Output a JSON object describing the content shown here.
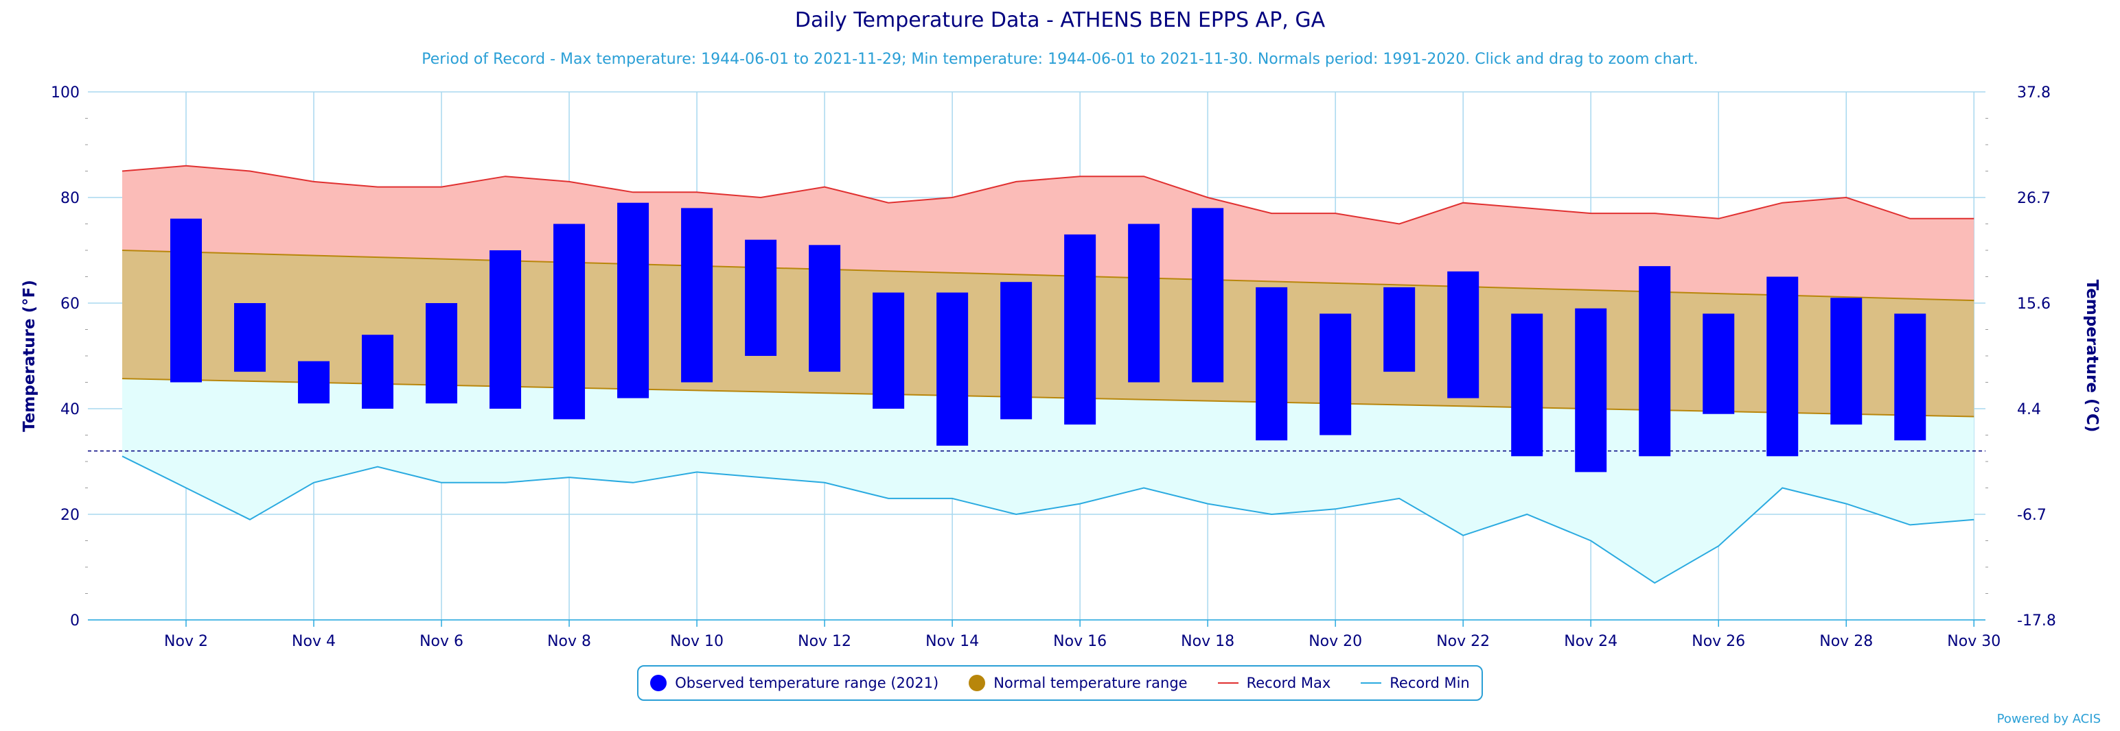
{
  "chart_data": {
    "type": "bar",
    "title": "Daily Temperature Data - ATHENS BEN EPPS AP, GA",
    "subtitle": "Period of Record - Max temperature: 1944-06-01 to 2021-11-29; Min temperature: 1944-06-01 to 2021-11-30. Normals period: 1991-2020. Click and drag to zoom chart.",
    "ylabel": "Temperature (°F)",
    "y2label": "Temperature (°C)",
    "ylim": [
      0,
      100
    ],
    "yticks": [
      0,
      20,
      40,
      60,
      80,
      100
    ],
    "y2ticks": [
      "-17.8",
      "-6.7",
      "4.4",
      "15.6",
      "26.7",
      "37.8"
    ],
    "x_days": [
      1,
      2,
      3,
      4,
      5,
      6,
      7,
      8,
      9,
      10,
      11,
      12,
      13,
      14,
      15,
      16,
      17,
      18,
      19,
      20,
      21,
      22,
      23,
      24,
      25,
      26,
      27,
      28,
      29,
      30
    ],
    "x_tick_labels": [
      "Nov 2",
      "Nov 4",
      "Nov 6",
      "Nov 8",
      "Nov 10",
      "Nov 12",
      "Nov 14",
      "Nov 16",
      "Nov 18",
      "Nov 20",
      "Nov 22",
      "Nov 24",
      "Nov 26",
      "Nov 28",
      "Nov 30"
    ],
    "x_tick_days": [
      2,
      4,
      6,
      8,
      10,
      12,
      14,
      16,
      18,
      20,
      22,
      24,
      26,
      28,
      30
    ],
    "freezing_line_f": 32,
    "grid": true,
    "legend_position": "bottom",
    "series": [
      {
        "name": "Observed temperature range (2021)",
        "color": "#0000ff",
        "days": [
          2,
          3,
          4,
          5,
          6,
          7,
          8,
          9,
          10,
          11,
          12,
          13,
          14,
          15,
          16,
          17,
          18,
          19,
          20,
          21,
          22,
          23,
          24,
          25,
          26,
          27,
          28,
          29
        ],
        "low": [
          45,
          47,
          41,
          40,
          41,
          40,
          38,
          42,
          45,
          50,
          47,
          40,
          33,
          38,
          37,
          45,
          45,
          34,
          35,
          47,
          42,
          31,
          28,
          31,
          39,
          31,
          37,
          34
        ],
        "high": [
          76,
          60,
          49,
          54,
          60,
          70,
          75,
          79,
          78,
          72,
          71,
          62,
          62,
          64,
          73,
          75,
          78,
          63,
          58,
          63,
          66,
          58,
          59,
          67,
          58,
          65,
          61,
          58
        ]
      },
      {
        "name": "Normal temperature range",
        "color": "#b8860b",
        "high_start": 70,
        "high_end": 60.5,
        "low_start": 45.7,
        "low_end": 38.5
      },
      {
        "name": "Record Max",
        "color": "#e03030",
        "values": [
          85,
          86,
          85,
          83,
          82,
          82,
          84,
          83,
          81,
          81,
          80,
          82,
          79,
          80,
          83,
          84,
          84,
          80,
          77,
          77,
          75,
          79,
          78,
          77,
          77,
          76,
          79,
          80,
          76,
          76
        ]
      },
      {
        "name": "Record Min",
        "color": "#2aaae0",
        "values": [
          31,
          25,
          19,
          26,
          29,
          26,
          26,
          27,
          26,
          28,
          27,
          26,
          23,
          23,
          20,
          22,
          25,
          22,
          20,
          21,
          23,
          16,
          20,
          15,
          7,
          14,
          25,
          22,
          18,
          19
        ]
      }
    ]
  },
  "legend": {
    "observed": "Observed temperature range (2021)",
    "normal": "Normal temperature range",
    "record_max": "Record Max",
    "record_min": "Record Min"
  },
  "credit": "Powered by ACIS"
}
